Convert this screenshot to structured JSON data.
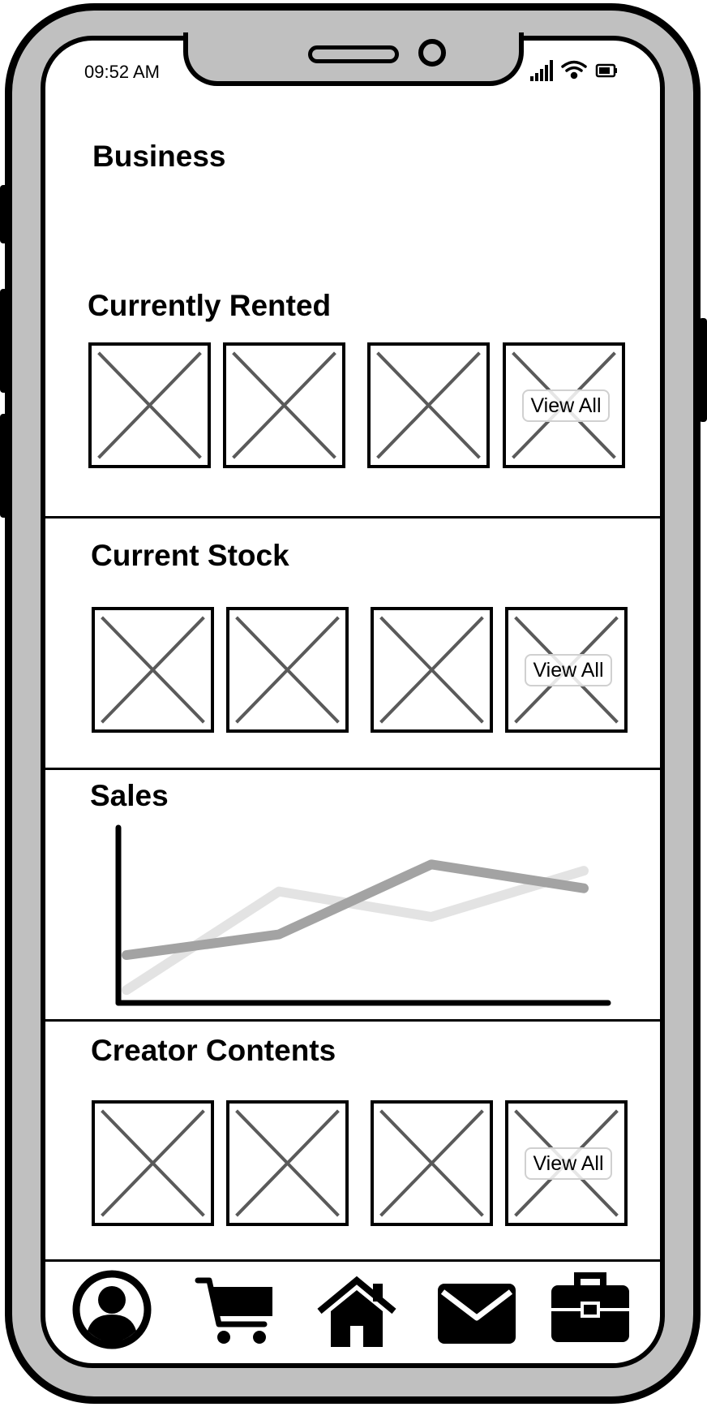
{
  "status_bar": {
    "time": "09:52 AM",
    "icons": [
      "signal-icon",
      "wifi-icon",
      "battery-icon"
    ]
  },
  "page": {
    "title": "Business"
  },
  "sections": {
    "currently_rented": {
      "title": "Currently Rented",
      "view_all": "View All"
    },
    "current_stock": {
      "title": "Current Stock",
      "view_all": "View All"
    },
    "sales": {
      "title": "Sales"
    },
    "creator_contents": {
      "title": "Creator Contents",
      "view_all": "View All"
    }
  },
  "chart_data": {
    "type": "line",
    "title": "Sales",
    "xlabel": "",
    "ylabel": "",
    "x": [
      1,
      2,
      3,
      4
    ],
    "ylim": [
      0,
      10
    ],
    "grid": false,
    "series": [
      {
        "color": "#a3a3a3",
        "values": [
          2.6,
          3.9,
          8.3,
          6.8
        ]
      },
      {
        "color": "#e3e3e3",
        "values": [
          0.4,
          6.6,
          5.0,
          7.9
        ]
      }
    ]
  },
  "bottom_nav": {
    "items": [
      "profile-icon",
      "cart-icon",
      "home-icon",
      "mail-icon",
      "briefcase-icon"
    ]
  }
}
